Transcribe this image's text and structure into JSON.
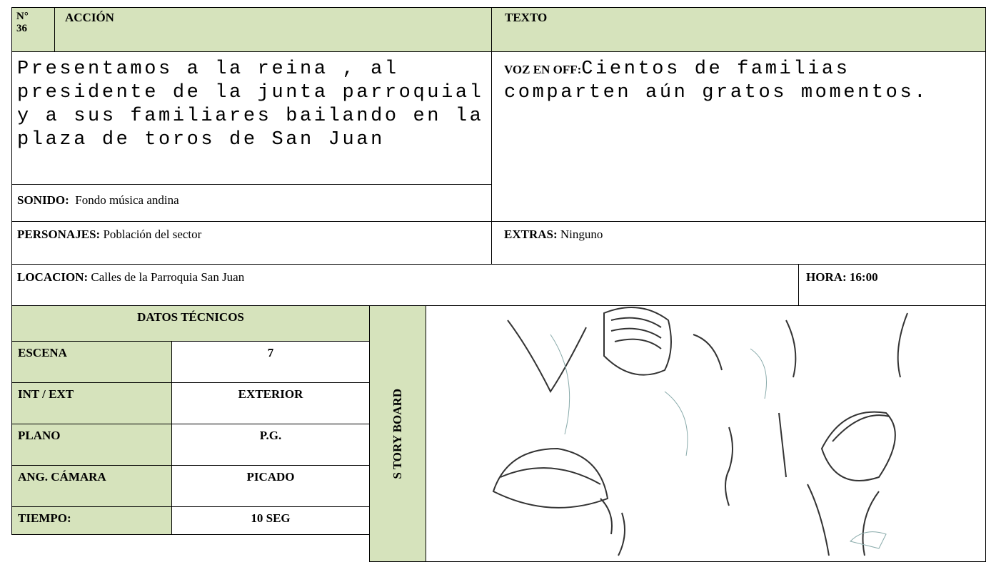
{
  "header": {
    "number_label": "N°",
    "number": "36",
    "action_label": "ACCIÓN",
    "text_label": "TEXTO"
  },
  "action": {
    "description": "Presentamos a la reina , al presidente de la junta parroquial y a sus familiares bailando en la plaza de toros de San Juan",
    "sound_label": "SONIDO:",
    "sound": "Fondo música andina"
  },
  "text": {
    "voice_label": "VOZ EN OFF:",
    "voice": "Cientos de familias comparten aún gratos momentos."
  },
  "characters": {
    "label": "PERSONAJES:",
    "value": "Población del sector"
  },
  "extras": {
    "label": "EXTRAS:",
    "value": "Ninguno"
  },
  "location": {
    "label": "LOCACION:",
    "value": "Calles de la Parroquia San Juan"
  },
  "time": {
    "label": "HORA:",
    "value": "16:00"
  },
  "technical": {
    "title": "DATOS TÉCNICOS",
    "rows": [
      [
        "ESCENA",
        "7"
      ],
      [
        "INT / EXT",
        "EXTERIOR"
      ],
      [
        "PLANO",
        "P.G."
      ],
      [
        "ANG. CÁMARA",
        "PICADO"
      ],
      [
        "TIEMPO:",
        "10 SEG"
      ]
    ]
  },
  "storyboard_label": "S TORY BOARD"
}
